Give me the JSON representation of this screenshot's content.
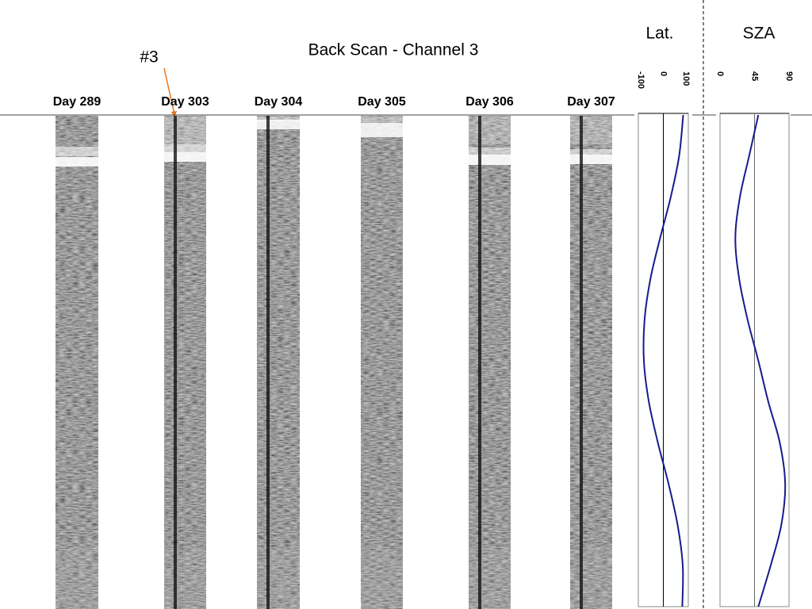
{
  "title": "Back Scan  - Channel 3",
  "annotation": "#3",
  "days": [
    "Day 289",
    "Day 303",
    "Day 304",
    "Day 305",
    "Day 306",
    "Day 307"
  ],
  "chart_data": [
    {
      "type": "line",
      "title": "Lat.",
      "color": "#1a1a8c",
      "values": [
        88,
        70,
        33,
        -14,
        -57,
        -83,
        -86,
        -64,
        -24,
        23,
        63,
        86,
        84
      ],
      "xlim": [
        -100,
        100
      ],
      "xticks": [
        -100,
        0,
        100
      ]
    },
    {
      "type": "line",
      "title": "SZA",
      "color": "#1a1a8c",
      "values": [
        50,
        38,
        26,
        20,
        25,
        36,
        50,
        63,
        78,
        85,
        80,
        66,
        50
      ],
      "xlim": [
        0,
        90
      ],
      "xticks": [
        0,
        45,
        90
      ]
    }
  ]
}
